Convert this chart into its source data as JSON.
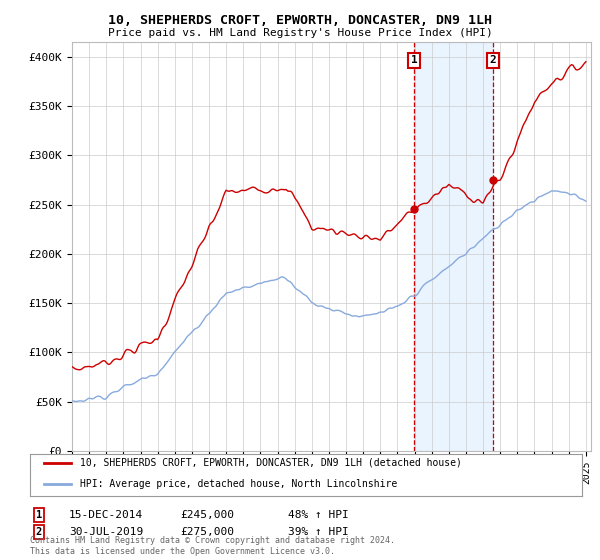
{
  "title": "10, SHEPHERDS CROFT, EPWORTH, DONCASTER, DN9 1LH",
  "subtitle": "Price paid vs. HM Land Registry's House Price Index (HPI)",
  "ylabel_ticks": [
    "£0",
    "£50K",
    "£100K",
    "£150K",
    "£200K",
    "£250K",
    "£300K",
    "£350K",
    "£400K"
  ],
  "ytick_values": [
    0,
    50000,
    100000,
    150000,
    200000,
    250000,
    300000,
    350000,
    400000
  ],
  "ylim": [
    0,
    415000
  ],
  "legend_line1": "10, SHEPHERDS CROFT, EPWORTH, DONCASTER, DN9 1LH (detached house)",
  "legend_line2": "HPI: Average price, detached house, North Lincolnshire",
  "annotation1_label": "1",
  "annotation1_date": "15-DEC-2014",
  "annotation1_price": "£245,000",
  "annotation1_hpi": "48% ↑ HPI",
  "annotation2_label": "2",
  "annotation2_date": "30-JUL-2019",
  "annotation2_price": "£275,000",
  "annotation2_hpi": "39% ↑ HPI",
  "footnote": "Contains HM Land Registry data © Crown copyright and database right 2024.\nThis data is licensed under the Open Government Licence v3.0.",
  "property_color": "#cc0000",
  "hpi_color": "#88aadd",
  "highlight_color": "#ddeeff",
  "vline_color": "#cc0000",
  "background_color": "#ffffff",
  "grid_color": "#cccccc",
  "sale1_year": 2014.96,
  "sale1_value": 245000,
  "sale2_year": 2019.58,
  "sale2_value": 275000
}
